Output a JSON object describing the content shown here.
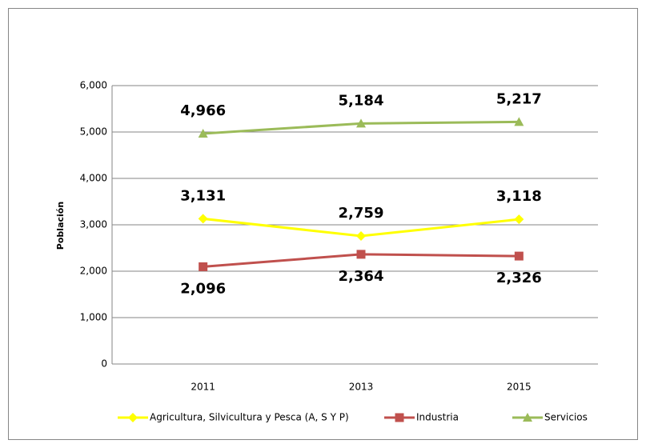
{
  "chart_data": {
    "type": "line",
    "y_label": "Población",
    "categories": [
      "2011",
      "2013",
      "2015"
    ],
    "series": [
      {
        "name": "Agricultura, Silvicultura y Pesca (A, S Y P)",
        "color": "#ffff00",
        "marker": "diamond",
        "label_position": "above",
        "values": [
          3131,
          2759,
          3118
        ],
        "value_labels": [
          "3,131",
          "2,759",
          "3,118"
        ]
      },
      {
        "name": "Industria",
        "color": "#c0504d",
        "marker": "square",
        "label_position": "below",
        "values": [
          2096,
          2364,
          2326
        ],
        "value_labels": [
          "2,096",
          "2,364",
          "2,326"
        ]
      },
      {
        "name": "Servicios",
        "color": "#9bbb59",
        "marker": "triangle",
        "label_position": "above",
        "values": [
          4966,
          5184,
          5217
        ],
        "value_labels": [
          "4,966",
          "5,184",
          "5,217"
        ]
      }
    ],
    "ylim": [
      0,
      6000
    ],
    "yticks": [
      0,
      {
        "value": 1000,
        "label": "1,000"
      },
      {
        "value": 2000,
        "label": "2,000"
      },
      {
        "value": 3000,
        "label": "3,000"
      },
      {
        "value": 4000,
        "label": "4,000"
      },
      {
        "value": 5000,
        "label": "5,000"
      },
      {
        "value": 6000,
        "label": "6,000"
      }
    ],
    "grid": true,
    "legend": "bottom"
  }
}
